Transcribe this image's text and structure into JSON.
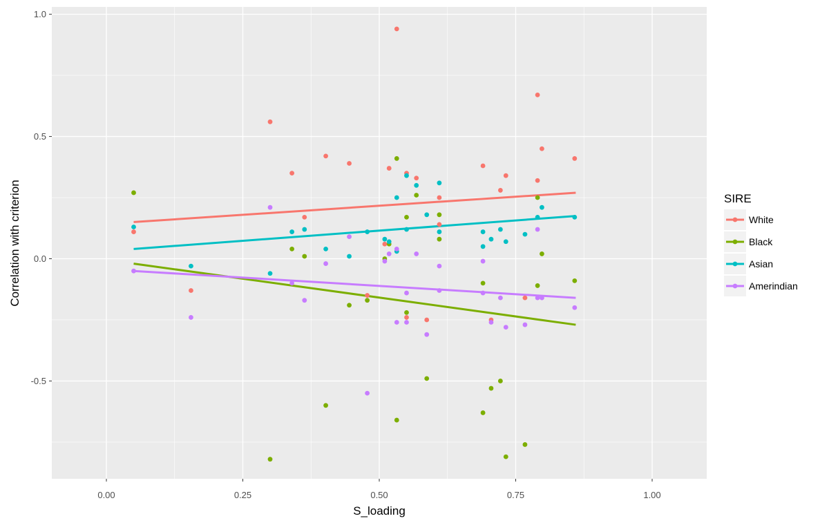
{
  "chart_data": {
    "type": "scatter",
    "xlabel": "S_loading",
    "ylabel": "Correlation with criterion",
    "xlim": [
      -0.1,
      1.1
    ],
    "ylim": [
      -0.9,
      1.03
    ],
    "x_ticks": [
      0.0,
      0.25,
      0.5,
      0.75,
      1.0
    ],
    "x_tick_labels": [
      "0.00",
      "0.25",
      "0.50",
      "0.75",
      "1.00"
    ],
    "y_ticks": [
      -0.5,
      0.0,
      0.5,
      1.0
    ],
    "y_tick_labels": [
      "-0.5",
      "0.0",
      "0.5",
      "1.0"
    ],
    "grid": true,
    "legend": {
      "title": "SIRE",
      "placement": "right"
    },
    "series": [
      {
        "name": "White",
        "color": "#F8766D",
        "trend": [
          [
            0.05,
            0.15
          ],
          [
            0.86,
            0.27
          ]
        ],
        "points": [
          [
            0.05,
            0.11
          ],
          [
            0.155,
            -0.13
          ],
          [
            0.3,
            0.56
          ],
          [
            0.34,
            0.35
          ],
          [
            0.363,
            0.17
          ],
          [
            0.402,
            0.42
          ],
          [
            0.445,
            0.39
          ],
          [
            0.478,
            -0.15
          ],
          [
            0.51,
            0.06
          ],
          [
            0.518,
            0.37
          ],
          [
            0.532,
            0.94
          ],
          [
            0.55,
            0.35
          ],
          [
            0.55,
            -0.24
          ],
          [
            0.568,
            0.33
          ],
          [
            0.587,
            -0.25
          ],
          [
            0.61,
            0.25
          ],
          [
            0.61,
            0.14
          ],
          [
            0.69,
            0.38
          ],
          [
            0.705,
            -0.25
          ],
          [
            0.722,
            0.28
          ],
          [
            0.732,
            0.34
          ],
          [
            0.767,
            -0.16
          ],
          [
            0.79,
            0.67
          ],
          [
            0.79,
            0.32
          ],
          [
            0.798,
            0.45
          ],
          [
            0.858,
            0.41
          ]
        ]
      },
      {
        "name": "Black",
        "color": "#7CAE00",
        "trend": [
          [
            0.05,
            -0.02
          ],
          [
            0.86,
            -0.27
          ]
        ],
        "points": [
          [
            0.05,
            0.27
          ],
          [
            0.3,
            -0.82
          ],
          [
            0.34,
            0.04
          ],
          [
            0.363,
            0.01
          ],
          [
            0.402,
            -0.6
          ],
          [
            0.445,
            -0.19
          ],
          [
            0.478,
            -0.17
          ],
          [
            0.51,
            0.0
          ],
          [
            0.518,
            0.06
          ],
          [
            0.532,
            0.41
          ],
          [
            0.532,
            -0.66
          ],
          [
            0.55,
            0.17
          ],
          [
            0.55,
            -0.22
          ],
          [
            0.568,
            0.26
          ],
          [
            0.587,
            -0.49
          ],
          [
            0.61,
            0.18
          ],
          [
            0.61,
            0.08
          ],
          [
            0.69,
            -0.1
          ],
          [
            0.69,
            -0.63
          ],
          [
            0.705,
            -0.53
          ],
          [
            0.722,
            -0.5
          ],
          [
            0.732,
            -0.81
          ],
          [
            0.767,
            -0.76
          ],
          [
            0.79,
            0.25
          ],
          [
            0.79,
            -0.11
          ],
          [
            0.798,
            0.02
          ],
          [
            0.858,
            -0.09
          ]
        ]
      },
      {
        "name": "Asian",
        "color": "#00BFC4",
        "trend": [
          [
            0.05,
            0.04
          ],
          [
            0.86,
            0.175
          ]
        ],
        "points": [
          [
            0.05,
            0.13
          ],
          [
            0.155,
            -0.03
          ],
          [
            0.3,
            -0.06
          ],
          [
            0.34,
            0.11
          ],
          [
            0.363,
            0.12
          ],
          [
            0.402,
            0.04
          ],
          [
            0.445,
            0.01
          ],
          [
            0.478,
            0.11
          ],
          [
            0.51,
            0.08
          ],
          [
            0.518,
            0.07
          ],
          [
            0.532,
            0.25
          ],
          [
            0.532,
            0.03
          ],
          [
            0.55,
            0.34
          ],
          [
            0.55,
            0.12
          ],
          [
            0.568,
            0.3
          ],
          [
            0.587,
            0.18
          ],
          [
            0.61,
            0.31
          ],
          [
            0.61,
            0.11
          ],
          [
            0.69,
            0.11
          ],
          [
            0.69,
            0.05
          ],
          [
            0.705,
            0.08
          ],
          [
            0.722,
            0.12
          ],
          [
            0.732,
            0.07
          ],
          [
            0.767,
            0.1
          ],
          [
            0.79,
            0.17
          ],
          [
            0.798,
            0.21
          ],
          [
            0.858,
            0.17
          ]
        ]
      },
      {
        "name": "Amerindian",
        "color": "#C77CFF",
        "trend": [
          [
            0.05,
            -0.05
          ],
          [
            0.86,
            -0.16
          ]
        ],
        "points": [
          [
            0.05,
            -0.05
          ],
          [
            0.155,
            -0.24
          ],
          [
            0.3,
            0.21
          ],
          [
            0.34,
            -0.1
          ],
          [
            0.363,
            -0.17
          ],
          [
            0.402,
            -0.02
          ],
          [
            0.445,
            0.09
          ],
          [
            0.478,
            -0.55
          ],
          [
            0.51,
            -0.01
          ],
          [
            0.518,
            0.02
          ],
          [
            0.532,
            0.04
          ],
          [
            0.532,
            -0.26
          ],
          [
            0.55,
            -0.14
          ],
          [
            0.55,
            -0.26
          ],
          [
            0.568,
            0.02
          ],
          [
            0.587,
            -0.31
          ],
          [
            0.61,
            -0.03
          ],
          [
            0.61,
            -0.13
          ],
          [
            0.69,
            -0.01
          ],
          [
            0.69,
            -0.14
          ],
          [
            0.705,
            -0.26
          ],
          [
            0.722,
            -0.16
          ],
          [
            0.732,
            -0.28
          ],
          [
            0.767,
            -0.27
          ],
          [
            0.79,
            -0.16
          ],
          [
            0.79,
            0.12
          ],
          [
            0.798,
            -0.16
          ],
          [
            0.858,
            -0.2
          ]
        ]
      }
    ]
  }
}
